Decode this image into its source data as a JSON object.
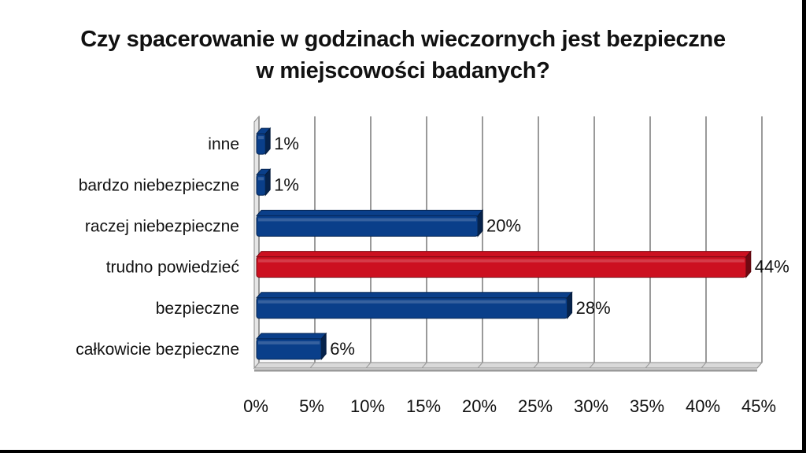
{
  "chart_data": {
    "type": "bar",
    "orientation": "horizontal",
    "title_lines": [
      "Czy spacerowanie w godzinach wieczornych jest bezpieczne",
      "w miejscowości badanych?"
    ],
    "categories": [
      "inne",
      "bardzo niebezpieczne",
      "raczej niebezpieczne",
      "trudno powiedzieć",
      "bezpieczne",
      "całkowicie bezpieczne"
    ],
    "values": [
      1,
      1,
      20,
      44,
      28,
      6
    ],
    "data_labels": [
      "1%",
      "1%",
      "20%",
      "44%",
      "28%",
      "6%"
    ],
    "highlight_category": "trudno powiedzieć",
    "xlim": [
      0,
      45
    ],
    "x_ticks": [
      0,
      5,
      10,
      15,
      20,
      25,
      30,
      35,
      40,
      45
    ],
    "x_tick_labels": [
      "0%",
      "5%",
      "10%",
      "15%",
      "20%",
      "25%",
      "30%",
      "35%",
      "40%",
      "45%"
    ],
    "grid": true,
    "style": "3d",
    "colors": {
      "bar": "#0a3f8a",
      "highlight": "#cc1020",
      "grid": "#9a9a9a"
    }
  }
}
